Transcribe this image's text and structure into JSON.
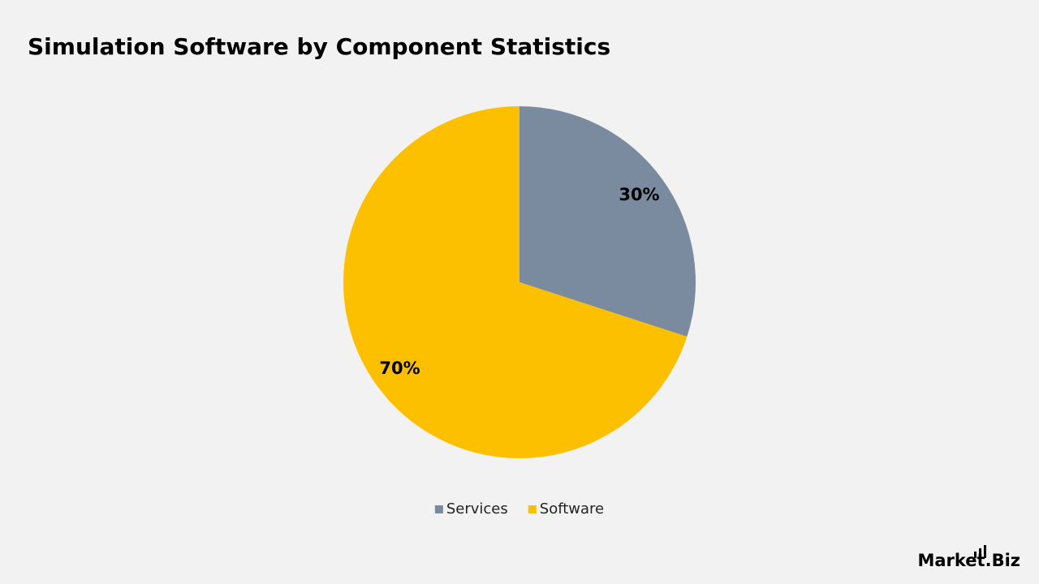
{
  "chart_data": {
    "type": "pie",
    "title": "Simulation Software by Component Statistics",
    "categories": [
      "Services",
      "Software"
    ],
    "values": [
      30,
      70
    ],
    "value_labels": [
      "30%",
      "70%"
    ],
    "colors": [
      "#7a8b9f",
      "#fdc000"
    ],
    "legend": "bottom",
    "watermark": "Market.Biz"
  }
}
